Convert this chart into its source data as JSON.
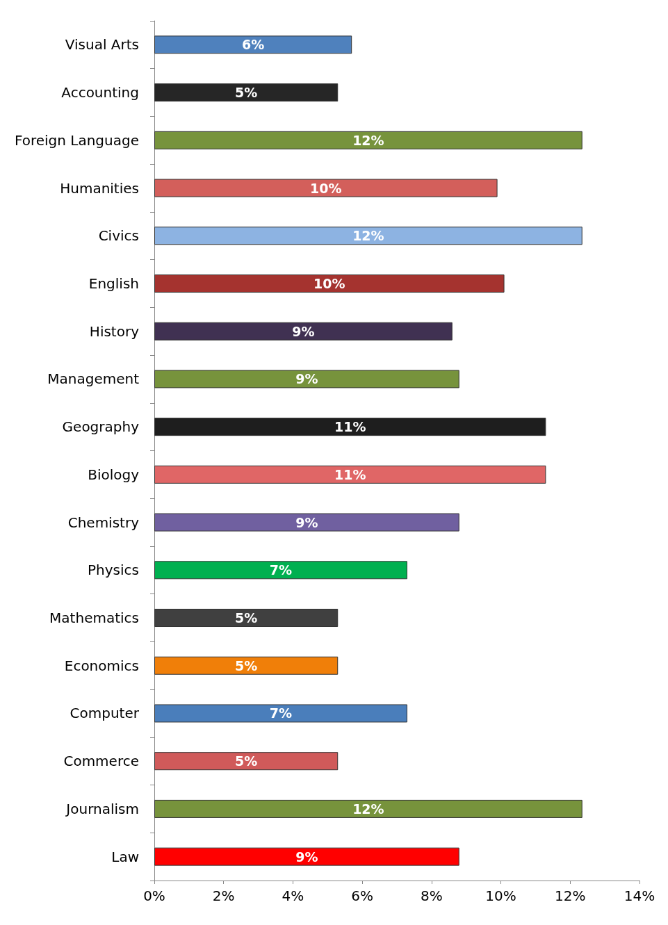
{
  "chart_data": {
    "type": "bar",
    "orientation": "horizontal",
    "categories": [
      "Visual Arts",
      "Accounting",
      "Foreign Language",
      "Humanities",
      "Civics",
      "English",
      "History",
      "Management",
      "Geography",
      "Biology",
      "Chemistry",
      "Physics",
      "Mathematics",
      "Economics",
      "Computer",
      "Commerce",
      "Journalism",
      "Law"
    ],
    "values": [
      5.7,
      5.3,
      12.35,
      9.9,
      12.35,
      10.1,
      8.6,
      8.8,
      11.3,
      11.3,
      8.8,
      7.3,
      5.3,
      5.3,
      7.3,
      5.3,
      12.35,
      8.8
    ],
    "value_labels": [
      "6%",
      "5%",
      "12%",
      "10%",
      "12%",
      "10%",
      "9%",
      "9%",
      "11%",
      "11%",
      "9%",
      "7%",
      "5%",
      "5%",
      "7%",
      "5%",
      "12%",
      "9%"
    ],
    "colors": [
      "#4f81bd",
      "#262626",
      "#77933c",
      "#d35f5b",
      "#8db3e2",
      "#a5332f",
      "#403152",
      "#77933c",
      "#1e1e1e",
      "#e06666",
      "#7060a0",
      "#00b050",
      "#404040",
      "#f07f09",
      "#4a7ebb",
      "#d05a5a",
      "#77933c",
      "#ff0000"
    ],
    "xlim": [
      0,
      14
    ],
    "xticks": [
      {
        "value": 0,
        "label": "0%"
      },
      {
        "value": 2,
        "label": "2%"
      },
      {
        "value": 4,
        "label": "4%"
      },
      {
        "value": 6,
        "label": "6%"
      },
      {
        "value": 8,
        "label": "8%"
      },
      {
        "value": 10,
        "label": "10%"
      },
      {
        "value": 12,
        "label": "12%"
      },
      {
        "value": 14,
        "label": "14%"
      }
    ],
    "grid": false
  }
}
